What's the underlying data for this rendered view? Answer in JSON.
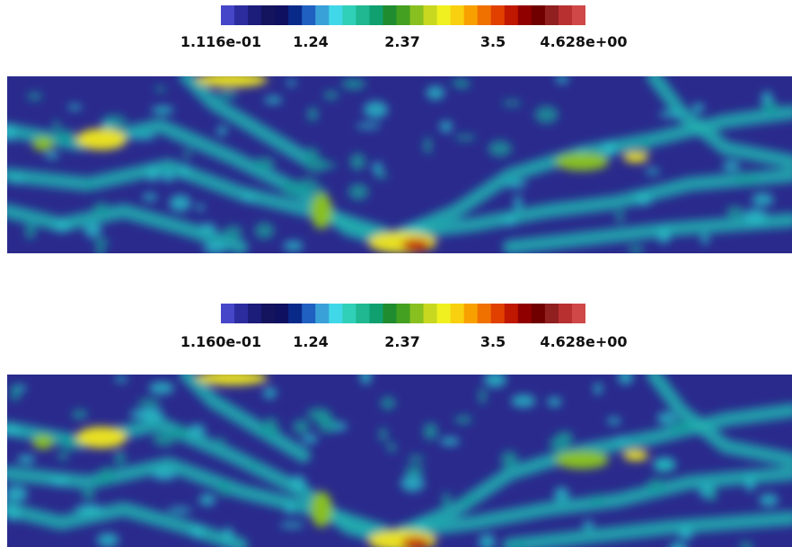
{
  "panels": [
    {
      "ticks": [
        "1.116e-01",
        "1.24",
        "2.37",
        "3.5",
        "4.628e+00"
      ]
    },
    {
      "ticks": [
        "1.160e-01",
        "1.24",
        "2.37",
        "3.5",
        "4.628e+00"
      ]
    }
  ],
  "colormap": [
    "#4646c8",
    "#2c2c9e",
    "#1c1c7a",
    "#14145e",
    "#101060",
    "#0a2a8a",
    "#2060c0",
    "#3aa0d8",
    "#40d8e8",
    "#30d0b8",
    "#20b890",
    "#10a070",
    "#208c30",
    "#44a020",
    "#88c020",
    "#c8d820",
    "#f0f020",
    "#f8d010",
    "#f8a000",
    "#f07000",
    "#e04000",
    "#c01800",
    "#900000",
    "#700000",
    "#902020",
    "#b83030",
    "#d04848"
  ],
  "colors": {
    "background": "#ffffff",
    "field_low": "#2a2a8c",
    "field_mid": "#20b0b0",
    "field_high": "#e8e020",
    "field_peak": "#c02010"
  }
}
